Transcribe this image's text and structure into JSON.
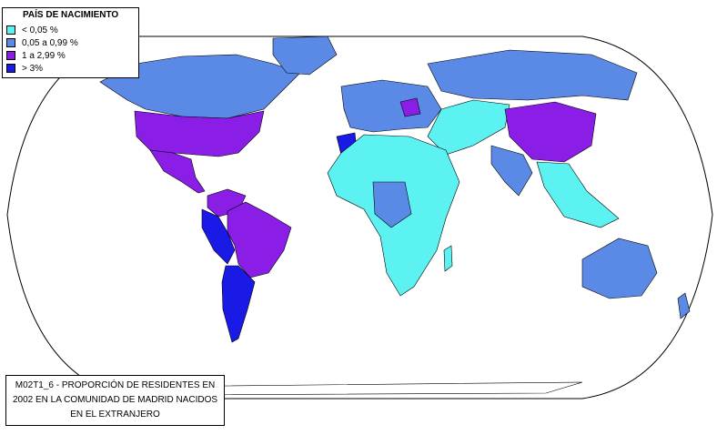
{
  "legend": {
    "title": "PAÍS DE NACIMIENTO",
    "items": [
      {
        "label": "< 0,05 %",
        "color": "#5cf2f2"
      },
      {
        "label": "0,05 a 0,99 %",
        "color": "#5a8ae6"
      },
      {
        "label": "1 a 2,99 %",
        "color": "#8a1ee6"
      },
      {
        "label": "> 3%",
        "color": "#1a1ae6"
      }
    ]
  },
  "caption": {
    "line1": "M02T1_6 - PROPORCIÓN DE RESIDENTES EN",
    "line2": "2002 EN LA COMUNIDAD DE MADRID NACIDOS",
    "line3": "EN EL EXTRANJERO"
  },
  "map": {
    "projection": "robinson",
    "regions": [
      {
        "name": "north-america",
        "class": "0,05 a 0,99 %"
      },
      {
        "name": "usa",
        "class": "1 a 2,99 %"
      },
      {
        "name": "mexico-central-america",
        "class": "1 a 2,99 %"
      },
      {
        "name": "colombia-venezuela",
        "class": "1 a 2,99 %"
      },
      {
        "name": "brazil",
        "class": "1 a 2,99 %"
      },
      {
        "name": "ecuador-peru",
        "class": "> 3%"
      },
      {
        "name": "argentina-chile",
        "class": "> 3%"
      },
      {
        "name": "greenland",
        "class": "0,05 a 0,99 %"
      },
      {
        "name": "europe",
        "class": "0,05 a 0,99 %"
      },
      {
        "name": "russia",
        "class": "0,05 a 0,99 %"
      },
      {
        "name": "china",
        "class": "1 a 2,99 %"
      },
      {
        "name": "morocco",
        "class": "> 3%"
      },
      {
        "name": "africa",
        "class": "< 0,05 %"
      },
      {
        "name": "australia",
        "class": "0,05 a 0,99 %"
      },
      {
        "name": "middle-east",
        "class": "< 0,05 %"
      }
    ]
  }
}
